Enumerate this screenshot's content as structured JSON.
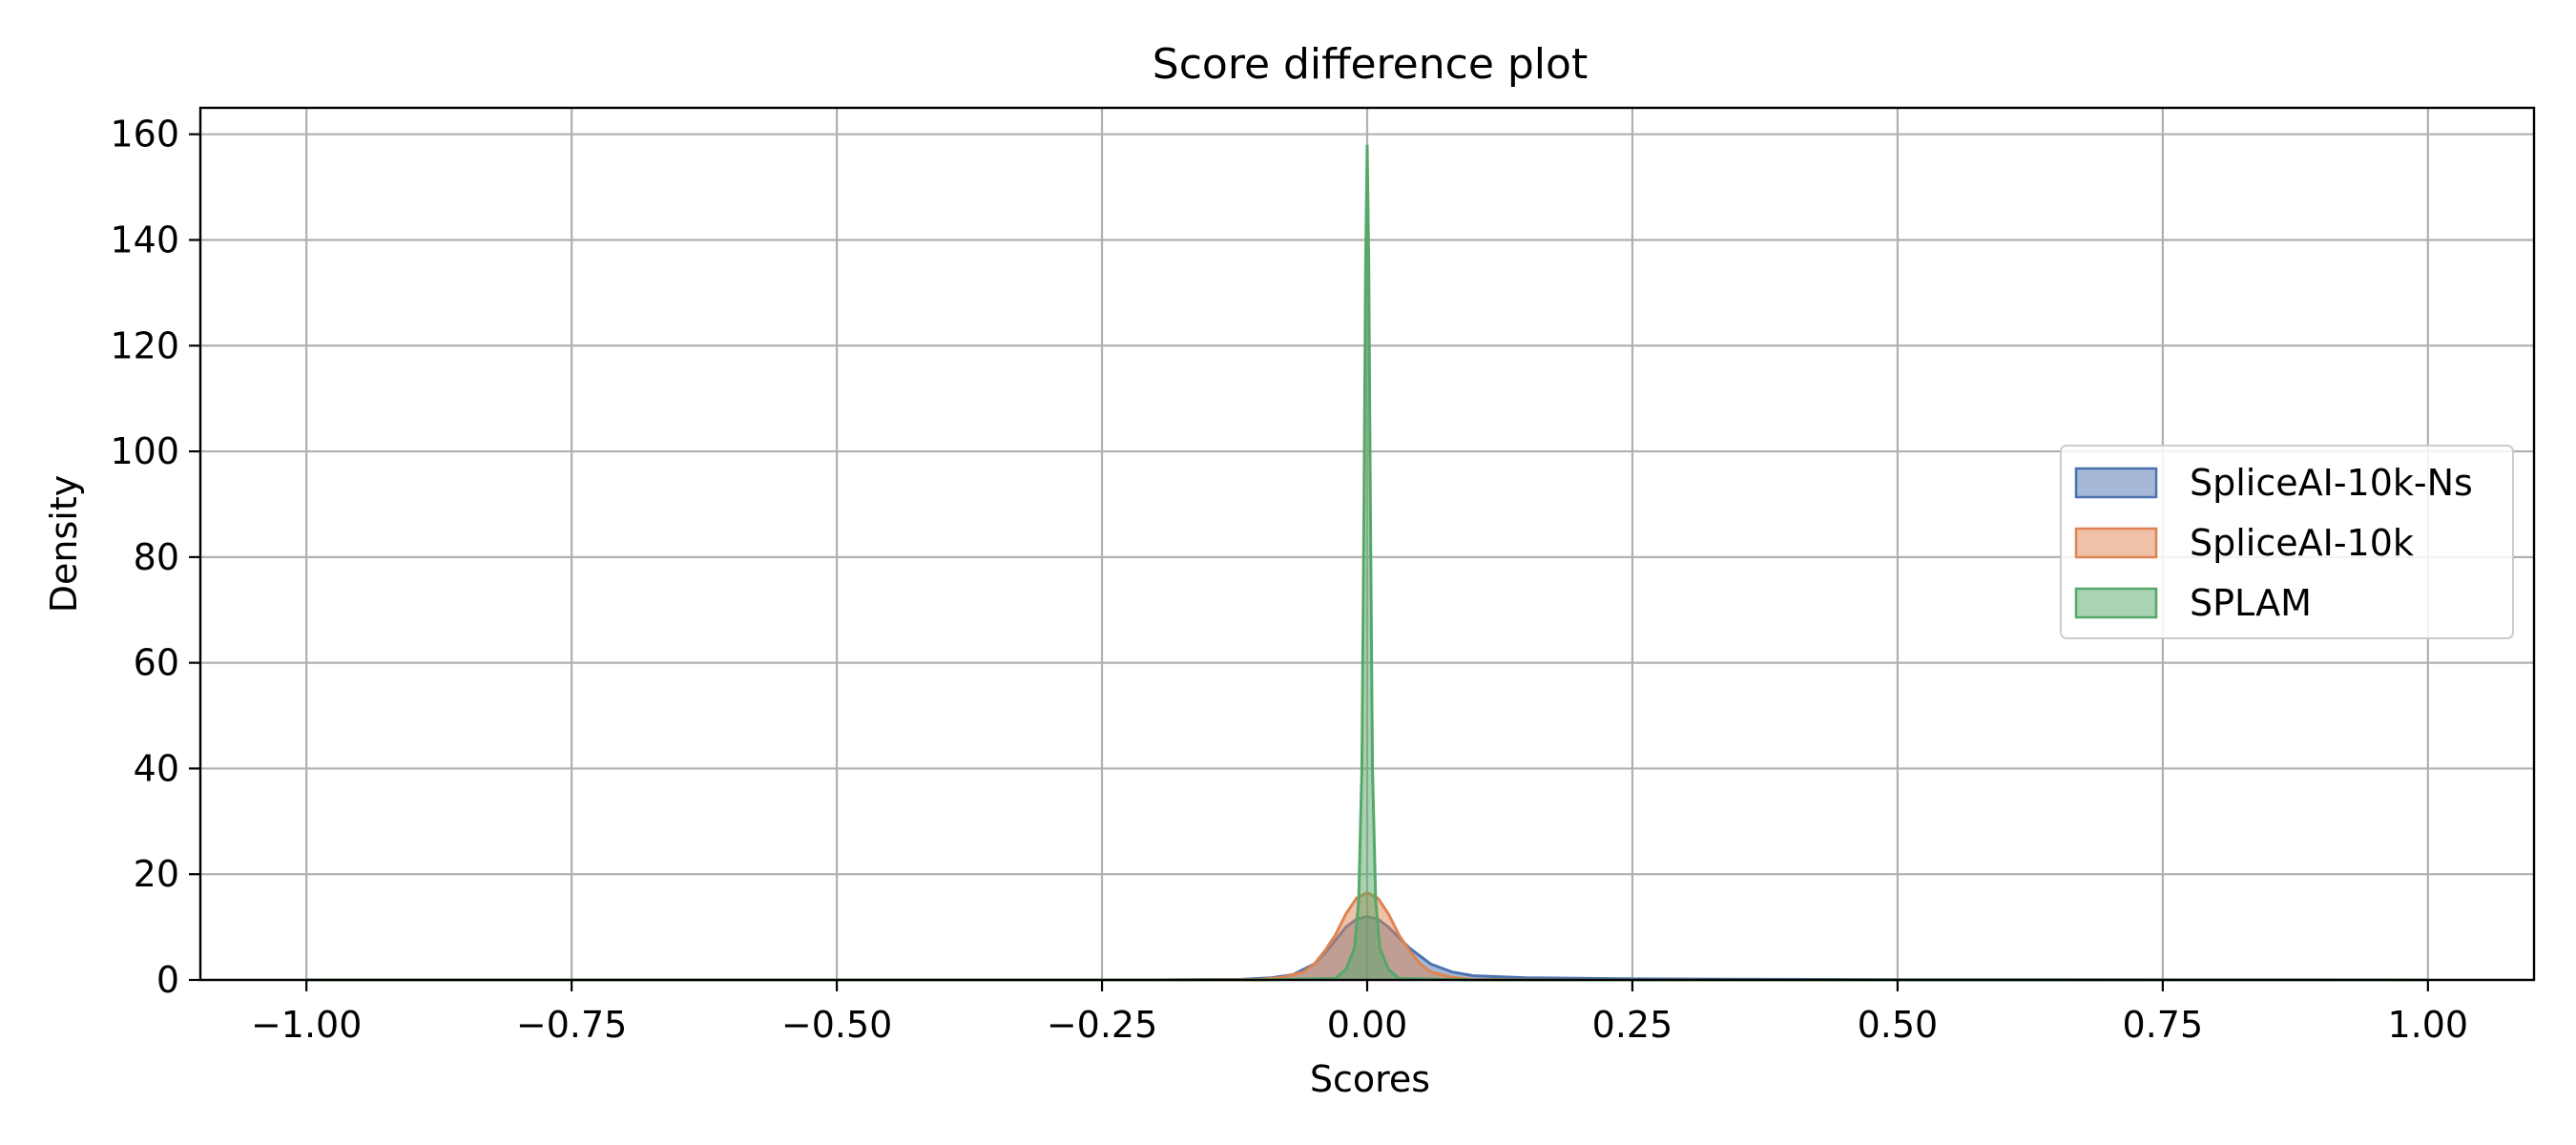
{
  "chart_data": {
    "type": "area",
    "title": "Score difference plot",
    "xlabel": "Scores",
    "ylabel": "Density",
    "xlim": [
      -1.1,
      1.1
    ],
    "ylim": [
      0,
      165
    ],
    "xticks": [
      -1.0,
      -0.75,
      -0.5,
      -0.25,
      0.0,
      0.25,
      0.5,
      0.75,
      1.0
    ],
    "xtick_labels": [
      "−1.00",
      "−0.75",
      "−0.50",
      "−0.25",
      "0.00",
      "0.25",
      "0.50",
      "0.75",
      "1.00"
    ],
    "yticks": [
      0,
      20,
      40,
      60,
      80,
      100,
      120,
      140,
      160
    ],
    "ytick_labels": [
      "0",
      "20",
      "40",
      "60",
      "80",
      "100",
      "120",
      "140",
      "160"
    ],
    "grid": true,
    "legend_position": "center-right",
    "series": [
      {
        "name": "SpliceAI-10k-Ns",
        "color": "#4c72b0",
        "x": [
          -1.0,
          -0.2,
          -0.12,
          -0.09,
          -0.07,
          -0.05,
          -0.04,
          -0.03,
          -0.02,
          -0.01,
          0.0,
          0.01,
          0.02,
          0.03,
          0.04,
          0.05,
          0.06,
          0.08,
          0.1,
          0.15,
          0.25,
          0.5,
          1.0
        ],
        "y": [
          0,
          0,
          0.1,
          0.4,
          1.0,
          3.0,
          5.0,
          7.5,
          10.0,
          11.5,
          12.0,
          11.5,
          10.0,
          8.0,
          6.0,
          4.5,
          3.0,
          1.5,
          0.8,
          0.4,
          0.2,
          0.05,
          0
        ]
      },
      {
        "name": "SpliceAI-10k",
        "color": "#dd8452",
        "x": [
          -1.0,
          -0.2,
          -0.1,
          -0.08,
          -0.06,
          -0.05,
          -0.04,
          -0.03,
          -0.02,
          -0.01,
          0.0,
          0.01,
          0.02,
          0.03,
          0.04,
          0.05,
          0.06,
          0.08,
          0.1,
          0.2,
          1.0
        ],
        "y": [
          0,
          0,
          0.1,
          0.5,
          1.5,
          3.0,
          5.5,
          8.5,
          12.5,
          15.5,
          16.5,
          15.5,
          12.5,
          8.5,
          5.5,
          3.0,
          1.5,
          0.5,
          0.1,
          0,
          0
        ]
      },
      {
        "name": "SPLAM",
        "color": "#55a868",
        "x": [
          -1.0,
          -0.1,
          -0.03,
          -0.02,
          -0.012,
          -0.008,
          -0.005,
          -0.003,
          -0.0015,
          0.0,
          0.0015,
          0.003,
          0.005,
          0.008,
          0.012,
          0.02,
          0.03,
          0.1,
          1.0
        ],
        "y": [
          0,
          0,
          0.3,
          2.0,
          6.0,
          15.0,
          40.0,
          90.0,
          135.0,
          158.0,
          135.0,
          90.0,
          40.0,
          15.0,
          6.0,
          2.0,
          0.3,
          0,
          0
        ]
      }
    ]
  }
}
